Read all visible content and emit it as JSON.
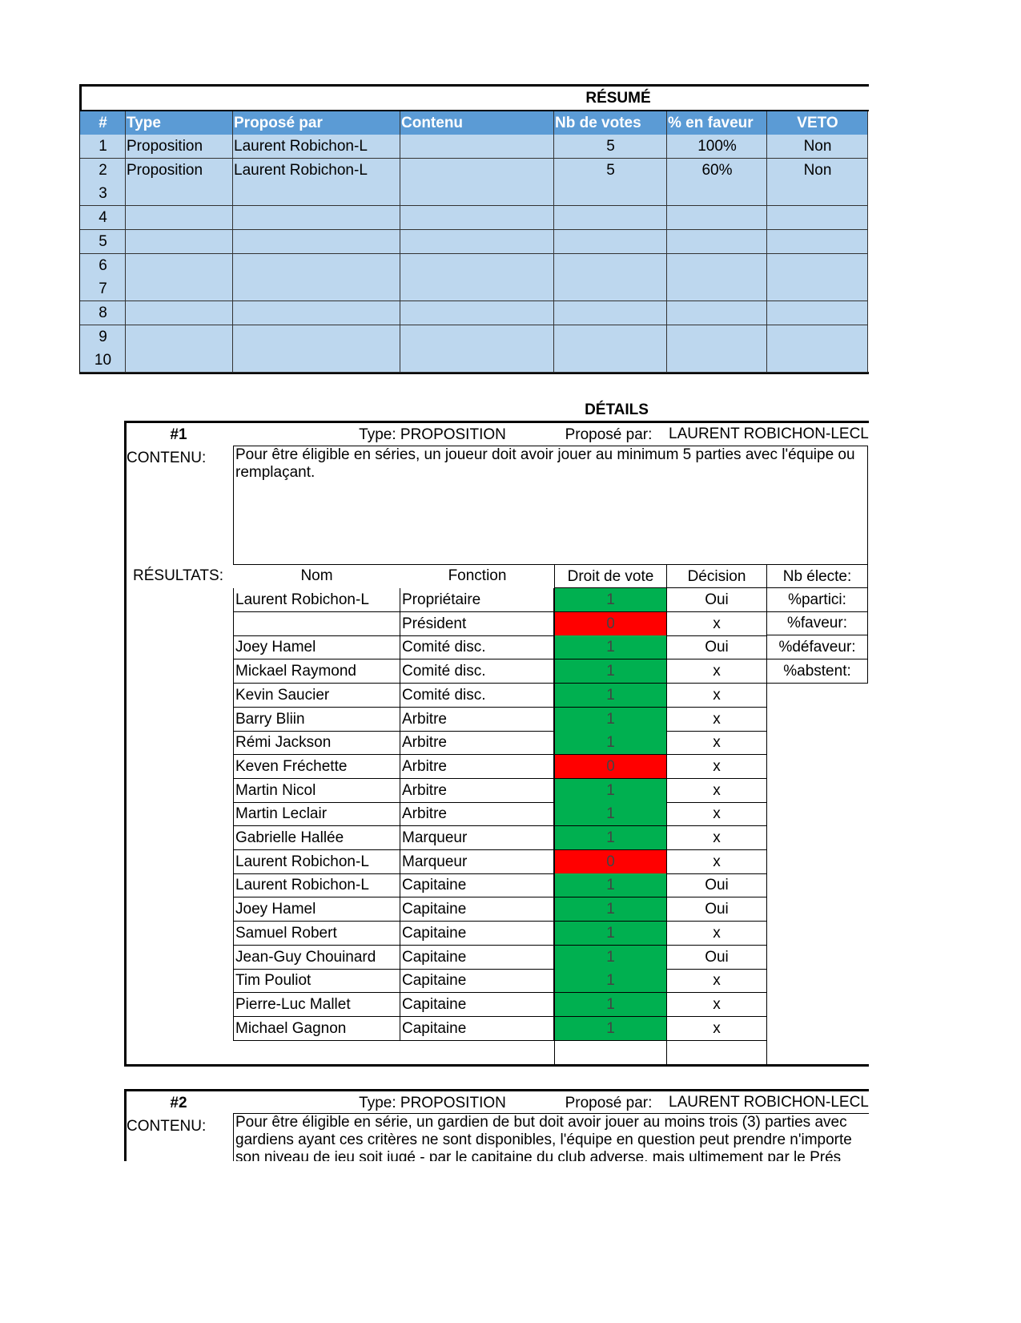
{
  "summary": {
    "title": "RÉSUMÉ",
    "headers": [
      "#",
      "Type",
      "Proposé par",
      "Contenu",
      "Nb de votes",
      "% en faveur",
      "VETO"
    ],
    "rows": [
      [
        "1",
        "Proposition",
        "Laurent Robichon-L",
        "",
        "5",
        "100%",
        "Non"
      ],
      [
        "2",
        "Proposition",
        "Laurent Robichon-L",
        "",
        "5",
        "60%",
        "Non"
      ],
      [
        "3",
        "",
        "",
        "",
        "",
        "",
        ""
      ],
      [
        "4",
        "",
        "",
        "",
        "",
        "",
        ""
      ],
      [
        "5",
        "",
        "",
        "",
        "",
        "",
        ""
      ],
      [
        "6",
        "",
        "",
        "",
        "",
        "",
        ""
      ],
      [
        "7",
        "",
        "",
        "",
        "",
        "",
        ""
      ],
      [
        "8",
        "",
        "",
        "",
        "",
        "",
        ""
      ],
      [
        "9",
        "",
        "",
        "",
        "",
        "",
        ""
      ],
      [
        "10",
        "",
        "",
        "",
        "",
        "",
        ""
      ]
    ]
  },
  "details_title": "DÉTAILS",
  "details": [
    {
      "number": "#1",
      "type": "Type: PROPOSITION",
      "proposed_label": "Proposé par:",
      "proposed_by": "LAURENT ROBICHON-LECLERC",
      "content_label": "CONTENU:",
      "content": "Pour être éligible en séries, un joueur doit avoir jouer au minimum 5 parties avec l'équipe ou remplaçant.",
      "results_label": "RÉSULTATS:",
      "results_headers": [
        "Nom",
        "Fonction",
        "Droit de vote",
        "Décision"
      ],
      "stats": [
        "Nb électe:",
        "%partici:",
        "%faveur:",
        "%défaveur:",
        "%abstent:"
      ],
      "results": [
        [
          "Laurent Robichon-L",
          "Propriétaire",
          "1",
          "Oui"
        ],
        [
          "",
          "Président",
          "0",
          "x"
        ],
        [
          "Joey Hamel",
          "Comité disc.",
          "1",
          "Oui"
        ],
        [
          "Mickael Raymond",
          "Comité disc.",
          "1",
          "x"
        ],
        [
          "Kevin Saucier",
          "Comité disc.",
          "1",
          "x"
        ],
        [
          "Barry Bliin",
          "Arbitre",
          "1",
          "x"
        ],
        [
          "Rémi Jackson",
          "Arbitre",
          "1",
          "x"
        ],
        [
          "Keven Fréchette",
          "Arbitre",
          "0",
          "x"
        ],
        [
          "Martin Nicol",
          "Arbitre",
          "1",
          "x"
        ],
        [
          "Martin Leclair",
          "Arbitre",
          "1",
          "x"
        ],
        [
          "Gabrielle Hallée",
          "Marqueur",
          "1",
          "x"
        ],
        [
          "Laurent Robichon-L",
          "Marqueur",
          "0",
          "x"
        ],
        [
          "Laurent Robichon-L",
          "Capitaine",
          "1",
          "Oui"
        ],
        [
          "Joey Hamel",
          "Capitaine",
          "1",
          "Oui"
        ],
        [
          "Samuel Robert",
          "Capitaine",
          "1",
          "x"
        ],
        [
          "Jean-Guy Chouinard",
          "Capitaine",
          "1",
          "Oui"
        ],
        [
          "Tim Pouliot",
          "Capitaine",
          "1",
          "x"
        ],
        [
          "Pierre-Luc Mallet",
          "Capitaine",
          "1",
          "x"
        ],
        [
          "Michael Gagnon",
          "Capitaine",
          "1",
          "x"
        ]
      ]
    },
    {
      "number": "#2",
      "type": "Type: PROPOSITION",
      "proposed_label": "Proposé par:",
      "proposed_by": "LAURENT ROBICHON-LECLERC",
      "content_label": "CONTENU:",
      "content_lines": [
        "Pour être éligible en série, un gardien de but doit avoir jouer au moins trois (3) parties avec",
        "gardiens ayant ces critères ne sont disponibles, l'équipe en question peut prendre n'importe",
        "son niveau de jeu soit jugé - par le capitaine du club adverse, mais ultimement par le Prés"
      ]
    }
  ],
  "colors": {
    "header": "#5b9bd5",
    "row": "#bdd7ee",
    "vote_yes": "#00b050",
    "vote_no": "#ff0000"
  }
}
